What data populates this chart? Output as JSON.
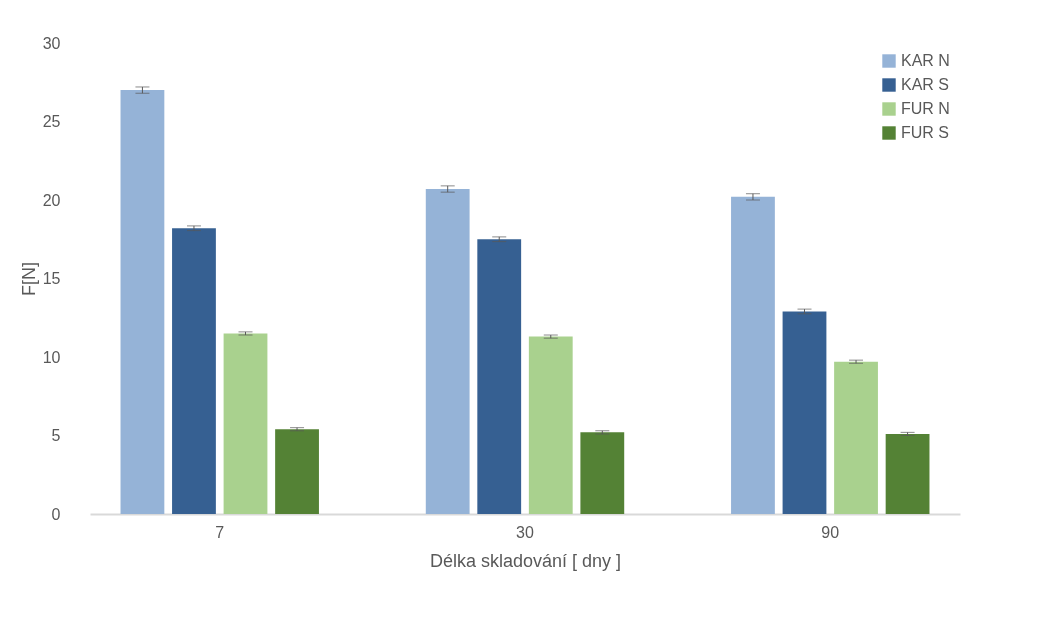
{
  "chart_data": {
    "type": "bar",
    "xlabel": "Délka skladování [ dny ]",
    "ylabel": "F[N]",
    "categories": [
      "7",
      "30",
      "90"
    ],
    "series": [
      {
        "name": "KAR N",
        "color": "#95b3d7",
        "values": [
          27.0,
          20.7,
          20.2
        ],
        "errors": [
          0.2,
          0.2,
          0.2
        ]
      },
      {
        "name": "KAR S",
        "color": "#366092",
        "values": [
          18.2,
          17.5,
          12.9
        ],
        "errors": [
          0.15,
          0.15,
          0.15
        ]
      },
      {
        "name": "FUR N",
        "color": "#a9d18e",
        "values": [
          11.5,
          11.3,
          9.7
        ],
        "errors": [
          0.1,
          0.1,
          0.1
        ]
      },
      {
        "name": "FUR S",
        "color": "#548235",
        "values": [
          5.4,
          5.2,
          5.1
        ],
        "errors": [
          0.1,
          0.1,
          0.1
        ]
      }
    ],
    "ylim": [
      0,
      30
    ],
    "yticks": [
      0,
      5,
      10,
      15,
      20,
      25,
      30
    ],
    "grid": false,
    "legend": "top right"
  }
}
